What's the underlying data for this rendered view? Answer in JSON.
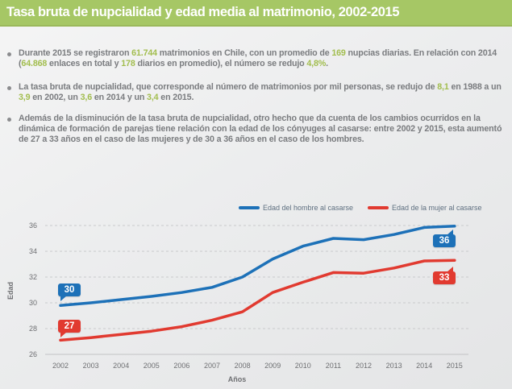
{
  "header": {
    "title": "Tasa bruta de nupcialidad y edad media al matrimonio, 2002-2015"
  },
  "colors": {
    "title_bar_green": "#a6c765",
    "title_bar_green_dark": "#9ab85a",
    "highlight_green": "#a2bd4e",
    "body_text_gray": "#7a7c7f",
    "men_line_blue": "#1d71b8",
    "women_line_red": "#e13a30"
  },
  "bullets": [
    {
      "segments": [
        {
          "text": "Durante 2015 se registraron ",
          "highlight": false
        },
        {
          "text": "61.744",
          "highlight": true
        },
        {
          "text": " matrimonios en Chile, con un promedio de ",
          "highlight": false
        },
        {
          "text": "169",
          "highlight": true
        },
        {
          "text": " nupcias diarias. En relación con 2014 (",
          "highlight": false
        },
        {
          "text": "64.868",
          "highlight": true
        },
        {
          "text": " enlaces en total y ",
          "highlight": false
        },
        {
          "text": "178",
          "highlight": true
        },
        {
          "text": " diarios en promedio), el número se redujo ",
          "highlight": false
        },
        {
          "text": "4,8%",
          "highlight": true
        },
        {
          "text": ".",
          "highlight": false
        }
      ]
    },
    {
      "segments": [
        {
          "text": "La tasa bruta de nupcialidad, que corresponde al número de matrimonios por mil personas, se redujo de ",
          "highlight": false
        },
        {
          "text": "8,1",
          "highlight": true
        },
        {
          "text": " en 1988 a un ",
          "highlight": false
        },
        {
          "text": "3,9",
          "highlight": true
        },
        {
          "text": " en 2002, un ",
          "highlight": false
        },
        {
          "text": "3,6",
          "highlight": true
        },
        {
          "text": " en 2014 y un ",
          "highlight": false
        },
        {
          "text": "3,4",
          "highlight": true
        },
        {
          "text": " en 2015.",
          "highlight": false
        }
      ]
    },
    {
      "segments": [
        {
          "text": "Además de la disminución de la tasa bruta de nupcialidad, otro hecho que da cuenta de los cambios ocurridos en la dinámica de formación de parejas tiene relación con la edad de los cónyuges al casarse: entre 2002 y 2015, esta aumentó de 27 a 33 años en el caso de las mujeres y de 30 a 36 años en el caso de los hombres.",
          "highlight": false
        }
      ]
    }
  ],
  "chart_data": {
    "type": "line",
    "x": [
      2002,
      2003,
      2004,
      2005,
      2006,
      2007,
      2008,
      2009,
      2010,
      2011,
      2012,
      2013,
      2014,
      2015
    ],
    "series": [
      {
        "name": "Edad del hombre al casarse",
        "color": "#1d71b8",
        "start_label": "30",
        "end_label": "36",
        "values": [
          29.8,
          30.0,
          30.25,
          30.5,
          30.8,
          31.2,
          32.0,
          33.4,
          34.4,
          35.0,
          34.9,
          35.3,
          35.85,
          35.95
        ]
      },
      {
        "name": "Edad de la mujer al casarse",
        "color": "#e13a30",
        "start_label": "27",
        "end_label": "33",
        "values": [
          27.1,
          27.3,
          27.55,
          27.8,
          28.15,
          28.65,
          29.3,
          30.8,
          31.6,
          32.35,
          32.3,
          32.7,
          33.25,
          33.3
        ]
      }
    ],
    "xlabel": "Años",
    "ylabel": "Edad",
    "ylim": [
      26,
      36
    ],
    "yticks": [
      26,
      28,
      30,
      32,
      34,
      36
    ],
    "grid": "horizontal-dashed",
    "legend_position": "top"
  }
}
